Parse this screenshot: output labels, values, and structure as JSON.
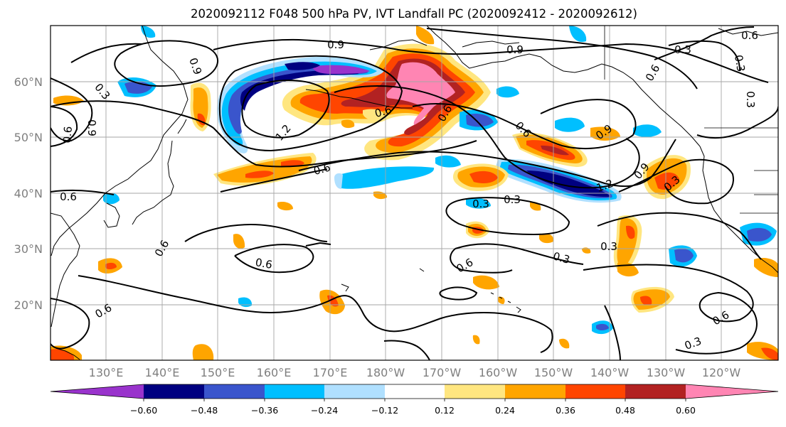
{
  "title": "2020092112 F048 500 hPa PV, IVT Landfall PC (2020092412 - 2020092612)",
  "lat_labels": [
    "60°N",
    "50°N",
    "40°N",
    "30°N",
    "20°N"
  ],
  "lon_labels": [
    "130°E",
    "140°E",
    "150°E",
    "160°E",
    "170°E",
    "180°W",
    "170°W",
    "160°W",
    "150°W",
    "140°W",
    "130°W",
    "120°W"
  ],
  "colors": {
    "below_-0.60": "#9933cc",
    "-0.60_-0.48": "#000080",
    "-0.48_-0.36": "#3a55cc",
    "-0.36_-0.24": "#00bfff",
    "-0.24_-0.12": "#b0e0ff",
    "-0.12_0.12": "#ffffff",
    "0.12_0.24": "#ffe680",
    "0.24_0.36": "#ffa500",
    "0.36_0.48": "#ff4500",
    "0.48_0.60": "#b22222",
    "above_0.60": "#ff85b3"
  },
  "colorbar": {
    "levels": [
      "−0.60",
      "−0.48",
      "−0.36",
      "−0.24",
      "−0.12",
      "0.12",
      "0.24",
      "0.36",
      "0.48",
      "0.60"
    ],
    "extend": "both"
  },
  "contour_labels": [
    "0.9",
    "0.3",
    "0.9",
    "0.6",
    "0.3",
    "0.6",
    "0.9",
    "0.6",
    "0.9",
    "0.3",
    "0.3",
    "0.6",
    "1.2",
    "0.6",
    "0.6",
    "0.9",
    "0.6",
    "0.6",
    "0.3",
    "0.6",
    "0.6",
    "1.2",
    "0.9",
    "0.3",
    "0.3",
    "0.6",
    "0.6",
    "0.3",
    "0.6",
    "0.3",
    "0.3"
  ]
}
